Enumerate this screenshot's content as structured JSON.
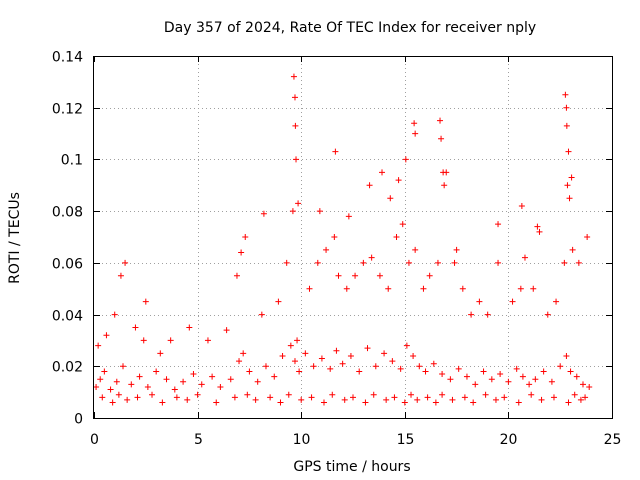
{
  "chart_data": {
    "type": "scatter",
    "title": "Day 357 of 2024, Rate Of TEC Index for receiver nply",
    "xlabel": "GPS time / hours",
    "ylabel": "ROTI / TECUs",
    "xlim": [
      0,
      25
    ],
    "ylim": [
      0,
      0.14
    ],
    "x_ticks": [
      0,
      5,
      10,
      15,
      20,
      25
    ],
    "x_tick_labels": [
      "0",
      "5",
      "10",
      "15",
      "20",
      "25"
    ],
    "y_ticks": [
      0,
      0.02,
      0.04,
      0.06,
      0.08,
      0.1,
      0.12,
      0.14
    ],
    "y_tick_labels": [
      "0",
      "0.02",
      "0.04",
      "0.06",
      "0.08",
      "0.1",
      "0.12",
      "0.14"
    ],
    "grid": true,
    "marker": "plus",
    "color": "#ff0000",
    "series": [
      {
        "name": "ROTI",
        "x": [
          0.1,
          0.3,
          0.5,
          0.8,
          1.1,
          1.4,
          1.8,
          2.2,
          2.6,
          3.0,
          3.5,
          3.9,
          4.3,
          4.8,
          5.2,
          5.7,
          6.1,
          6.6,
          7.0,
          7.2,
          7.5,
          7.9,
          8.3,
          8.7,
          9.1,
          9.5,
          9.7,
          9.8,
          9.9,
          10.2,
          10.6,
          11.0,
          11.4,
          11.7,
          12.0,
          12.4,
          12.8,
          13.2,
          13.6,
          14.0,
          14.4,
          14.8,
          15.1,
          15.4,
          15.7,
          16.0,
          16.4,
          16.8,
          17.2,
          17.6,
          18.0,
          18.4,
          18.8,
          19.2,
          19.6,
          20.0,
          20.4,
          20.7,
          21.0,
          21.3,
          21.7,
          22.1,
          22.5,
          22.8,
          23.0,
          23.3,
          23.6,
          23.9,
          0.2,
          0.6,
          1.0,
          1.3,
          1.5,
          2.0,
          2.4,
          3.2,
          3.7,
          4.6,
          5.5,
          6.4,
          7.1,
          7.3,
          8.1,
          8.9,
          9.3,
          9.6,
          9.75,
          9.85,
          10.4,
          10.8,
          11.2,
          11.6,
          11.8,
          12.2,
          12.6,
          13.0,
          13.4,
          13.8,
          14.2,
          14.6,
          14.9,
          15.2,
          15.5,
          15.9,
          16.2,
          16.6,
          16.9,
          17.0,
          17.4,
          17.8,
          18.2,
          18.6,
          19.0,
          19.5,
          20.2,
          20.6,
          20.8,
          21.2,
          21.5,
          21.9,
          22.3,
          22.7,
          22.85,
          22.95,
          23.1,
          23.4,
          23.8,
          0.4,
          0.9,
          1.2,
          1.6,
          2.1,
          2.8,
          3.3,
          4.0,
          4.5,
          5.0,
          5.9,
          6.8,
          7.4,
          7.8,
          8.5,
          9.0,
          9.4,
          10.0,
          10.5,
          11.1,
          11.5,
          12.1,
          12.5,
          13.1,
          13.5,
          14.1,
          14.5,
          15.0,
          15.3,
          15.6,
          16.1,
          16.5,
          16.8,
          17.3,
          17.9,
          18.3,
          18.9,
          19.4,
          19.8,
          20.5,
          21.1,
          21.6,
          22.2,
          22.9,
          23.2,
          23.5,
          23.7,
          2.5,
          6.9,
          8.2,
          9.65,
          9.7,
          9.72,
          10.9,
          11.65,
          12.3,
          13.3,
          13.9,
          14.3,
          14.7,
          15.05,
          15.45,
          15.5,
          16.7,
          16.75,
          16.85,
          17.5,
          19.5,
          20.65,
          21.4,
          22.75,
          22.8,
          22.82,
          22.9,
          23.05
        ],
        "y": [
          0.012,
          0.015,
          0.018,
          0.011,
          0.014,
          0.02,
          0.013,
          0.016,
          0.012,
          0.018,
          0.015,
          0.011,
          0.014,
          0.017,
          0.013,
          0.016,
          0.012,
          0.015,
          0.022,
          0.025,
          0.018,
          0.014,
          0.02,
          0.016,
          0.024,
          0.028,
          0.022,
          0.03,
          0.018,
          0.025,
          0.02,
          0.023,
          0.019,
          0.026,
          0.021,
          0.024,
          0.018,
          0.027,
          0.02,
          0.025,
          0.022,
          0.019,
          0.028,
          0.024,
          0.02,
          0.018,
          0.021,
          0.017,
          0.015,
          0.019,
          0.016,
          0.013,
          0.018,
          0.015,
          0.017,
          0.014,
          0.019,
          0.016,
          0.013,
          0.015,
          0.018,
          0.014,
          0.02,
          0.024,
          0.018,
          0.016,
          0.013,
          0.012,
          0.028,
          0.032,
          0.04,
          0.055,
          0.06,
          0.035,
          0.03,
          0.025,
          0.03,
          0.035,
          0.03,
          0.034,
          0.064,
          0.07,
          0.04,
          0.045,
          0.06,
          0.08,
          0.1,
          0.083,
          0.05,
          0.06,
          0.065,
          0.07,
          0.055,
          0.05,
          0.055,
          0.06,
          0.062,
          0.055,
          0.05,
          0.07,
          0.075,
          0.06,
          0.065,
          0.05,
          0.055,
          0.06,
          0.09,
          0.095,
          0.06,
          0.05,
          0.04,
          0.045,
          0.04,
          0.06,
          0.045,
          0.05,
          0.062,
          0.05,
          0.072,
          0.04,
          0.045,
          0.06,
          0.09,
          0.085,
          0.065,
          0.06,
          0.07,
          0.008,
          0.006,
          0.009,
          0.007,
          0.008,
          0.009,
          0.006,
          0.008,
          0.007,
          0.009,
          0.006,
          0.008,
          0.009,
          0.007,
          0.008,
          0.006,
          0.009,
          0.007,
          0.008,
          0.006,
          0.009,
          0.007,
          0.008,
          0.006,
          0.009,
          0.007,
          0.008,
          0.006,
          0.009,
          0.007,
          0.008,
          0.006,
          0.009,
          0.007,
          0.008,
          0.006,
          0.009,
          0.007,
          0.008,
          0.006,
          0.009,
          0.007,
          0.008,
          0.006,
          0.009,
          0.007,
          0.008,
          0.045,
          0.055,
          0.079,
          0.132,
          0.124,
          0.113,
          0.08,
          0.103,
          0.078,
          0.09,
          0.095,
          0.085,
          0.092,
          0.1,
          0.114,
          0.11,
          0.115,
          0.108,
          0.095,
          0.065,
          0.075,
          0.082,
          0.074,
          0.125,
          0.12,
          0.113,
          0.103,
          0.093
        ]
      }
    ]
  }
}
